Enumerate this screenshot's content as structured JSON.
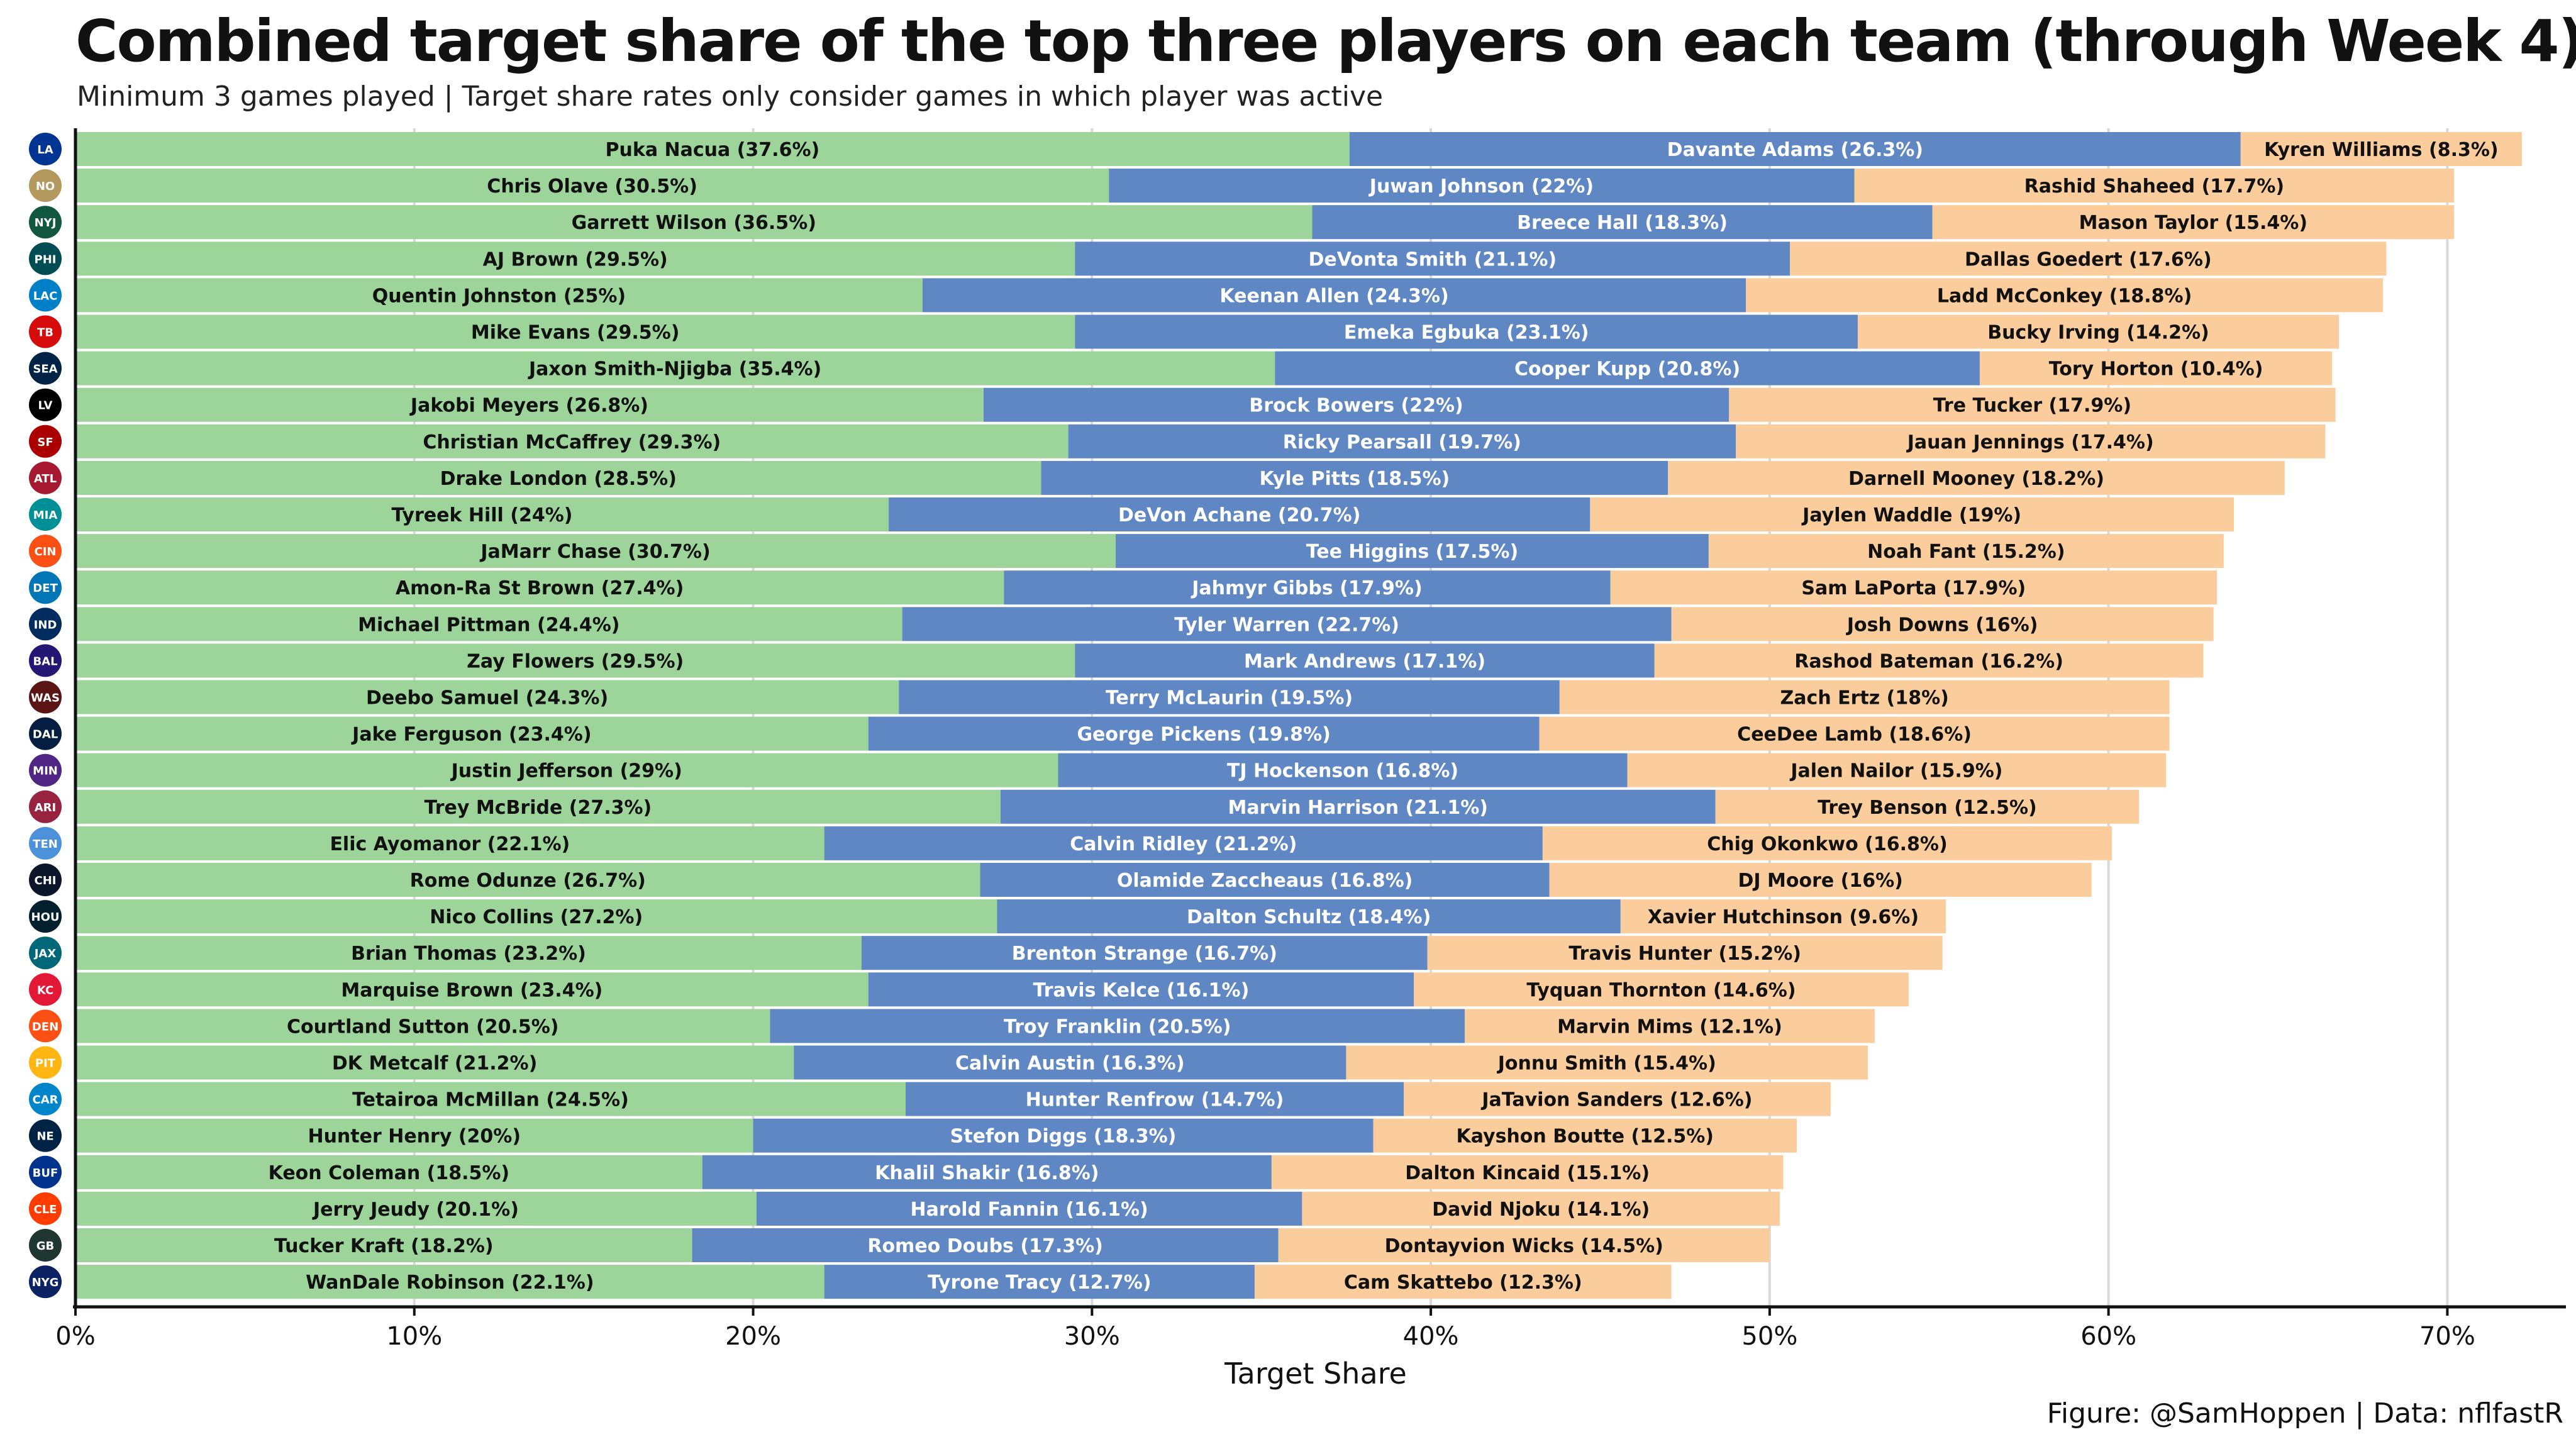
{
  "title": "Combined target share of the top three players on each team (through Week 4)",
  "subtitle": "Minimum 3 games played | Target share rates only consider games in which player was active",
  "caption": "Figure: @SamHoppen | Data: nflfastR",
  "colors": {
    "first": "#9cd49a",
    "second": "#5f87c4",
    "third": "#fbcd9c"
  },
  "chart_data": {
    "type": "bar",
    "orientation": "horizontal",
    "stacked": true,
    "xlabel": "Target Share",
    "xlim": [
      0,
      73.5
    ],
    "xticks": [
      0,
      10,
      20,
      30,
      40,
      50,
      60,
      70
    ],
    "xtick_labels": [
      "0%",
      "10%",
      "20%",
      "30%",
      "40%",
      "50%",
      "60%",
      "70%"
    ],
    "grid": "vertical",
    "teams": [
      {
        "team": "LA",
        "players": [
          [
            "Puka Nacua (37.6%)",
            37.6
          ],
          [
            "Davante Adams (26.3%)",
            26.3
          ],
          [
            "Kyren Williams (8.3%)",
            8.3
          ]
        ]
      },
      {
        "team": "NO",
        "players": [
          [
            "Chris Olave (30.5%)",
            30.5
          ],
          [
            "Juwan Johnson (22%)",
            22.0
          ],
          [
            "Rashid Shaheed (17.7%)",
            17.7
          ]
        ]
      },
      {
        "team": "NYJ",
        "players": [
          [
            "Garrett Wilson (36.5%)",
            36.5
          ],
          [
            "Breece Hall (18.3%)",
            18.3
          ],
          [
            "Mason Taylor (15.4%)",
            15.4
          ]
        ]
      },
      {
        "team": "PHI",
        "players": [
          [
            "AJ Brown (29.5%)",
            29.5
          ],
          [
            "DeVonta Smith (21.1%)",
            21.1
          ],
          [
            "Dallas Goedert (17.6%)",
            17.6
          ]
        ]
      },
      {
        "team": "LAC",
        "players": [
          [
            "Quentin Johnston (25%)",
            25.0
          ],
          [
            "Keenan Allen (24.3%)",
            24.3
          ],
          [
            "Ladd McConkey (18.8%)",
            18.8
          ]
        ]
      },
      {
        "team": "TB",
        "players": [
          [
            "Mike Evans (29.5%)",
            29.5
          ],
          [
            "Emeka Egbuka (23.1%)",
            23.1
          ],
          [
            "Bucky Irving (14.2%)",
            14.2
          ]
        ]
      },
      {
        "team": "SEA",
        "players": [
          [
            "Jaxon Smith-Njigba (35.4%)",
            35.4
          ],
          [
            "Cooper Kupp (20.8%)",
            20.8
          ],
          [
            "Tory Horton (10.4%)",
            10.4
          ]
        ]
      },
      {
        "team": "LV",
        "players": [
          [
            "Jakobi Meyers (26.8%)",
            26.8
          ],
          [
            "Brock Bowers (22%)",
            22.0
          ],
          [
            "Tre Tucker (17.9%)",
            17.9
          ]
        ]
      },
      {
        "team": "SF",
        "players": [
          [
            "Christian McCaffrey (29.3%)",
            29.3
          ],
          [
            "Ricky Pearsall (19.7%)",
            19.7
          ],
          [
            "Jauan Jennings (17.4%)",
            17.4
          ]
        ]
      },
      {
        "team": "ATL",
        "players": [
          [
            "Drake London (28.5%)",
            28.5
          ],
          [
            "Kyle Pitts (18.5%)",
            18.5
          ],
          [
            "Darnell Mooney (18.2%)",
            18.2
          ]
        ]
      },
      {
        "team": "MIA",
        "players": [
          [
            "Tyreek Hill (24%)",
            24.0
          ],
          [
            "DeVon Achane (20.7%)",
            20.7
          ],
          [
            "Jaylen Waddle (19%)",
            19.0
          ]
        ]
      },
      {
        "team": "CIN",
        "players": [
          [
            "JaMarr Chase (30.7%)",
            30.7
          ],
          [
            "Tee Higgins (17.5%)",
            17.5
          ],
          [
            "Noah Fant (15.2%)",
            15.2
          ]
        ]
      },
      {
        "team": "DET",
        "players": [
          [
            "Amon-Ra St Brown (27.4%)",
            27.4
          ],
          [
            "Jahmyr Gibbs (17.9%)",
            17.9
          ],
          [
            "Sam LaPorta (17.9%)",
            17.9
          ]
        ]
      },
      {
        "team": "IND",
        "players": [
          [
            "Michael Pittman (24.4%)",
            24.4
          ],
          [
            "Tyler Warren (22.7%)",
            22.7
          ],
          [
            "Josh Downs (16%)",
            16.0
          ]
        ]
      },
      {
        "team": "BAL",
        "players": [
          [
            "Zay Flowers (29.5%)",
            29.5
          ],
          [
            "Mark Andrews (17.1%)",
            17.1
          ],
          [
            "Rashod Bateman (16.2%)",
            16.2
          ]
        ]
      },
      {
        "team": "WAS",
        "players": [
          [
            "Deebo Samuel (24.3%)",
            24.3
          ],
          [
            "Terry McLaurin (19.5%)",
            19.5
          ],
          [
            "Zach Ertz (18%)",
            18.0
          ]
        ]
      },
      {
        "team": "DAL",
        "players": [
          [
            "Jake Ferguson (23.4%)",
            23.4
          ],
          [
            "George Pickens (19.8%)",
            19.8
          ],
          [
            "CeeDee Lamb (18.6%)",
            18.6
          ]
        ]
      },
      {
        "team": "MIN",
        "players": [
          [
            "Justin Jefferson (29%)",
            29.0
          ],
          [
            "TJ Hockenson (16.8%)",
            16.8
          ],
          [
            "Jalen Nailor (15.9%)",
            15.9
          ]
        ]
      },
      {
        "team": "ARI",
        "players": [
          [
            "Trey McBride (27.3%)",
            27.3
          ],
          [
            "Marvin Harrison (21.1%)",
            21.1
          ],
          [
            "Trey Benson (12.5%)",
            12.5
          ]
        ]
      },
      {
        "team": "TEN",
        "players": [
          [
            "Elic Ayomanor (22.1%)",
            22.1
          ],
          [
            "Calvin Ridley (21.2%)",
            21.2
          ],
          [
            "Chig Okonkwo (16.8%)",
            16.8
          ]
        ]
      },
      {
        "team": "CHI",
        "players": [
          [
            "Rome Odunze (26.7%)",
            26.7
          ],
          [
            "Olamide Zaccheaus (16.8%)",
            16.8
          ],
          [
            "DJ Moore (16%)",
            16.0
          ]
        ]
      },
      {
        "team": "HOU",
        "players": [
          [
            "Nico Collins (27.2%)",
            27.2
          ],
          [
            "Dalton Schultz (18.4%)",
            18.4
          ],
          [
            "Xavier Hutchinson (9.6%)",
            9.6
          ]
        ]
      },
      {
        "team": "JAX",
        "players": [
          [
            "Brian Thomas (23.2%)",
            23.2
          ],
          [
            "Brenton Strange (16.7%)",
            16.7
          ],
          [
            "Travis Hunter (15.2%)",
            15.2
          ]
        ]
      },
      {
        "team": "KC",
        "players": [
          [
            "Marquise Brown (23.4%)",
            23.4
          ],
          [
            "Travis Kelce (16.1%)",
            16.1
          ],
          [
            "Tyquan Thornton (14.6%)",
            14.6
          ]
        ]
      },
      {
        "team": "DEN",
        "players": [
          [
            "Courtland Sutton (20.5%)",
            20.5
          ],
          [
            "Troy Franklin (20.5%)",
            20.5
          ],
          [
            "Marvin Mims (12.1%)",
            12.1
          ]
        ]
      },
      {
        "team": "PIT",
        "players": [
          [
            "DK Metcalf (21.2%)",
            21.2
          ],
          [
            "Calvin Austin (16.3%)",
            16.3
          ],
          [
            "Jonnu Smith (15.4%)",
            15.4
          ]
        ]
      },
      {
        "team": "CAR",
        "players": [
          [
            "Tetairoa McMillan (24.5%)",
            24.5
          ],
          [
            "Hunter Renfrow (14.7%)",
            14.7
          ],
          [
            "JaTavion Sanders (12.6%)",
            12.6
          ]
        ]
      },
      {
        "team": "NE",
        "players": [
          [
            "Hunter Henry (20%)",
            20.0
          ],
          [
            "Stefon Diggs (18.3%)",
            18.3
          ],
          [
            "Kayshon Boutte (12.5%)",
            12.5
          ]
        ]
      },
      {
        "team": "BUF",
        "players": [
          [
            "Keon Coleman (18.5%)",
            18.5
          ],
          [
            "Khalil Shakir (16.8%)",
            16.8
          ],
          [
            "Dalton Kincaid (15.1%)",
            15.1
          ]
        ]
      },
      {
        "team": "CLE",
        "players": [
          [
            "Jerry Jeudy (20.1%)",
            20.1
          ],
          [
            "Harold Fannin (16.1%)",
            16.1
          ],
          [
            "David Njoku (14.1%)",
            14.1
          ]
        ]
      },
      {
        "team": "GB",
        "players": [
          [
            "Tucker Kraft (18.2%)",
            18.2
          ],
          [
            "Romeo Doubs (17.3%)",
            17.3
          ],
          [
            "Dontayvion Wicks (14.5%)",
            14.5
          ]
        ]
      },
      {
        "team": "NYG",
        "players": [
          [
            "WanDale Robinson (22.1%)",
            22.1
          ],
          [
            "Tyrone Tracy (12.7%)",
            12.7
          ],
          [
            "Cam Skattebo (12.3%)",
            12.3
          ]
        ]
      }
    ]
  }
}
